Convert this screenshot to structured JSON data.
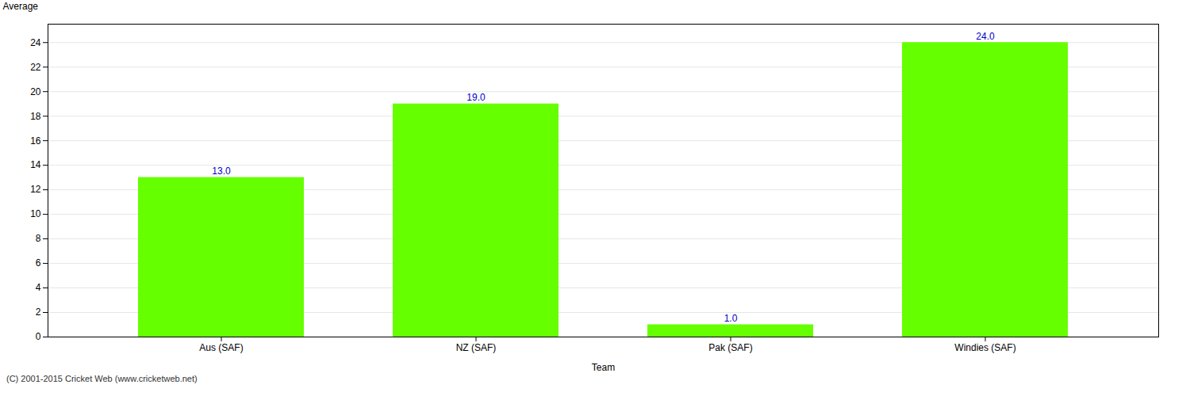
{
  "chart_data": {
    "type": "bar",
    "xlabel": "Team",
    "ylabel": "Average",
    "categories": [
      "Aus (SAF)",
      "NZ (SAF)",
      "Pak (SAF)",
      "Windies (SAF)"
    ],
    "values": [
      13.0,
      19.0,
      1.0,
      24.0
    ],
    "value_labels": [
      "13.0",
      "19.0",
      "1.0",
      "24.0"
    ],
    "data_labels": true,
    "color": "#66ff00",
    "ylim": [
      0,
      25.5
    ],
    "yticks": [
      0,
      2,
      4,
      6,
      8,
      10,
      12,
      14,
      16,
      18,
      20,
      22,
      24
    ],
    "grid": true,
    "annotations": [
      "(C) 2001-2015 Cricket Web (www.cricketweb.net)"
    ]
  }
}
